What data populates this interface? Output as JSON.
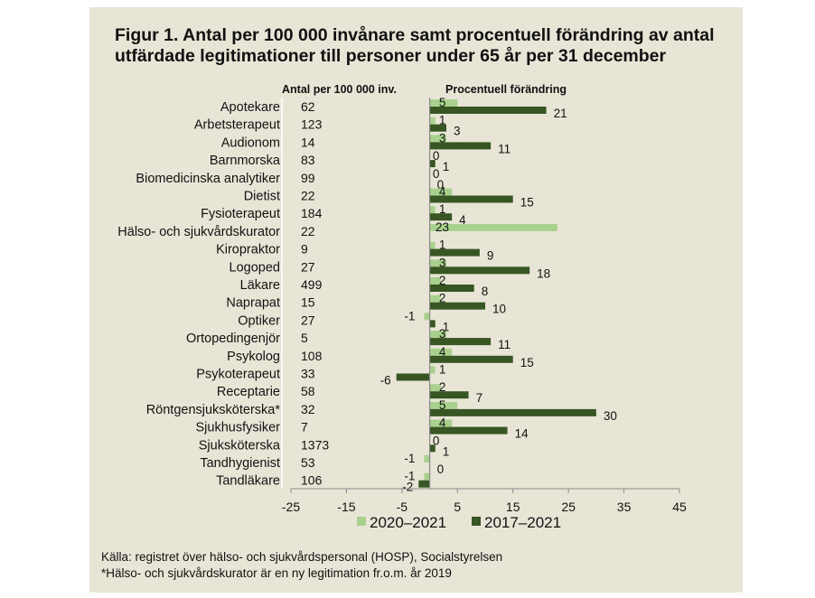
{
  "title": "Figur 1. Antal per 100 000 invånare samt procentuell förändring av antal utfärdade legitimationer till personer under 65 år per 31 december",
  "source_lines": [
    "Källa: registret över hälso- och sjukvårdspersonal (HOSP), Socialstyrelsen",
    "*Hälso- och sjukvårdskurator är en ny legitimation fr.o.m. år 2019"
  ],
  "colors": {
    "panel": "#e8e5d6",
    "series_light": "#a9d18e",
    "series_dark": "#375623"
  },
  "chart_data": {
    "type": "bar",
    "orientation": "horizontal",
    "column_headers": [
      "Antal per 100 000 inv.",
      "Procentuell förändring"
    ],
    "categories": [
      "Apotekare",
      "Arbetsterapeut",
      "Audionom",
      "Barnmorska",
      "Biomedicinska analytiker",
      "Dietist",
      "Fysioterapeut",
      "Hälso- och sjukvårdskurator",
      "Kiropraktor",
      "Logoped",
      "Läkare",
      "Naprapat",
      "Optiker",
      "Ortopedingenjör",
      "Psykolog",
      "Psykoterapeut",
      "Receptarie",
      "Röntgensjuksköterska*",
      "Sjukhusfysiker",
      "Sjuksköterska",
      "Tandhygienist",
      "Tandläkare"
    ],
    "count_per_100000": [
      62,
      123,
      14,
      83,
      99,
      22,
      184,
      22,
      9,
      27,
      499,
      15,
      27,
      5,
      108,
      33,
      58,
      32,
      7,
      1373,
      53,
      106
    ],
    "series": [
      {
        "name": "2020–2021",
        "values": [
          5,
          1,
          3,
          0,
          0,
          4,
          1,
          23,
          1,
          3,
          2,
          2,
          -1,
          3,
          4,
          1,
          2,
          5,
          4,
          0,
          -1,
          -1
        ]
      },
      {
        "name": "2017–2021",
        "values": [
          21,
          3,
          11,
          1,
          0,
          15,
          4,
          null,
          9,
          18,
          8,
          10,
          1,
          11,
          15,
          -6,
          7,
          30,
          14,
          1,
          0,
          -2
        ]
      }
    ],
    "x_ticks": [
      -25,
      -15,
      -5,
      5,
      15,
      25,
      35,
      45
    ],
    "xlim": [
      -25,
      50
    ],
    "grid": false,
    "legend_position": "bottom"
  }
}
